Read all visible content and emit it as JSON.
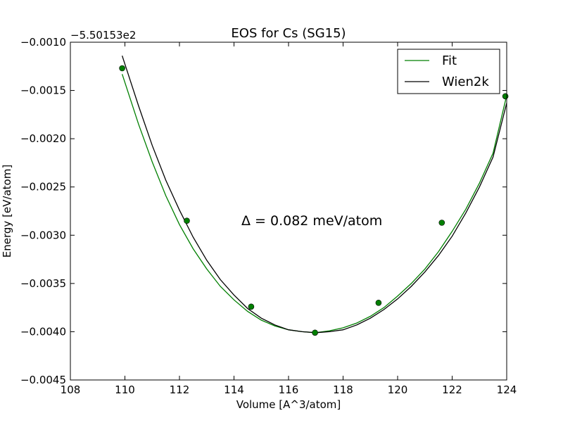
{
  "chart_data": {
    "type": "line",
    "title": "EOS for Cs (SG15)",
    "xlabel": "Volume [A^3/atom]",
    "ylabel": "Energy [eV/atom]",
    "offset_text": "−5.50153e2",
    "xlim": [
      108,
      124
    ],
    "ylim": [
      -0.0045,
      -0.001
    ],
    "x_ticks": [
      108,
      110,
      112,
      114,
      116,
      118,
      120,
      122,
      124
    ],
    "x_tick_labels": [
      "108",
      "110",
      "112",
      "114",
      "116",
      "118",
      "120",
      "122",
      "124"
    ],
    "y_ticks": [
      -0.001,
      -0.0015,
      -0.002,
      -0.0025,
      -0.003,
      -0.0035,
      -0.004,
      -0.0045
    ],
    "y_tick_labels": [
      "−0.0010",
      "−0.0015",
      "−0.0020",
      "−0.0025",
      "−0.0030",
      "−0.0035",
      "−0.0040",
      "−0.0045"
    ],
    "grid": false,
    "legend_position": "top-right",
    "annotation": "Δ = 0.082 meV/atom",
    "points": {
      "color": "#007f00",
      "x": [
        109.9,
        112.27,
        114.63,
        116.97,
        119.3,
        121.62,
        123.95
      ],
      "y": [
        -0.00127,
        -0.00285,
        -0.00374,
        -0.00401,
        -0.0037,
        -0.00287,
        -0.00156
      ]
    },
    "series": [
      {
        "name": "Fit",
        "color": "#007f00",
        "x": [
          109.9,
          110.5,
          111.0,
          111.5,
          112.0,
          112.5,
          113.0,
          113.5,
          114.0,
          114.5,
          115.0,
          115.5,
          116.0,
          116.5,
          117.0,
          117.5,
          118.0,
          118.5,
          119.0,
          119.5,
          120.0,
          120.5,
          121.0,
          121.5,
          122.0,
          122.5,
          123.0,
          123.5,
          124.0
        ],
        "y": [
          -0.00133,
          -0.00185,
          -0.00224,
          -0.00259,
          -0.00289,
          -0.00314,
          -0.00335,
          -0.00353,
          -0.00367,
          -0.00379,
          -0.00388,
          -0.00394,
          -0.00398,
          -0.004,
          -0.00401,
          -0.00399,
          -0.00396,
          -0.00391,
          -0.00384,
          -0.00375,
          -0.00363,
          -0.0035,
          -0.00335,
          -0.00317,
          -0.00296,
          -0.00273,
          -0.00246,
          -0.00215,
          -0.00155
        ]
      },
      {
        "name": "Wien2k",
        "color": "#000000",
        "x": [
          109.9,
          110.5,
          111.0,
          111.5,
          112.0,
          112.5,
          113.0,
          113.5,
          114.0,
          114.5,
          115.0,
          115.5,
          116.0,
          116.5,
          117.0,
          117.5,
          118.0,
          118.5,
          119.0,
          119.5,
          120.0,
          120.5,
          121.0,
          121.5,
          122.0,
          122.5,
          123.0,
          123.5,
          124.0
        ],
        "y": [
          -0.00114,
          -0.00166,
          -0.00207,
          -0.00243,
          -0.00274,
          -0.00302,
          -0.00326,
          -0.00346,
          -0.00362,
          -0.00376,
          -0.00386,
          -0.00393,
          -0.00398,
          -0.004,
          -0.00401,
          -0.004,
          -0.00398,
          -0.00393,
          -0.00386,
          -0.00377,
          -0.00366,
          -0.00353,
          -0.00338,
          -0.00321,
          -0.00301,
          -0.00277,
          -0.0025,
          -0.00219,
          -0.00163
        ]
      }
    ]
  }
}
